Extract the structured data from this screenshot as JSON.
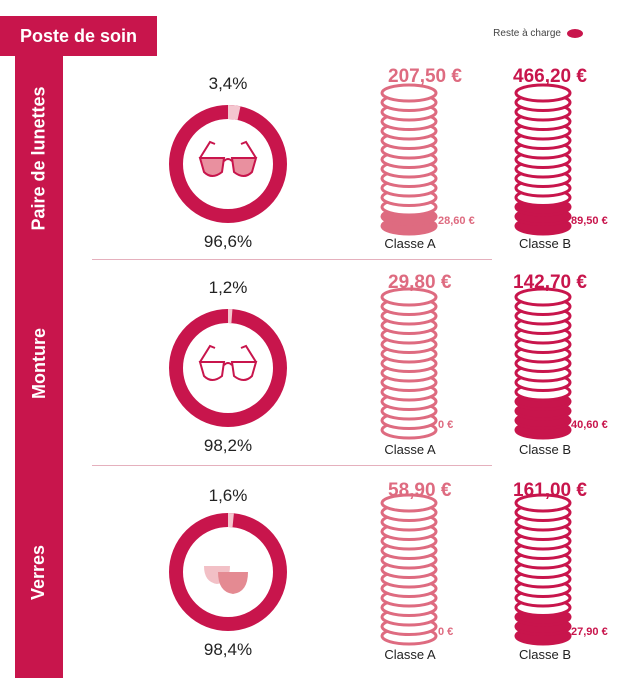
{
  "header": {
    "title": "Poste de soin"
  },
  "legend": {
    "label": "Reste à charge",
    "color": "#c8154c"
  },
  "colors": {
    "primary": "#c8154c",
    "light": "#de6b80",
    "ring_bg": "#f4c6cf"
  },
  "chart_data": {
    "type": "donut-and-coin-stacks",
    "rows": [
      {
        "name": "Paire de lunettes",
        "icon": "glasses-tinted-icon",
        "donut": {
          "small_pct_label": "3,4%",
          "big_pct_label": "96,6%",
          "small": 3.4,
          "big": 96.6
        },
        "classe_a": {
          "label": "Classe A",
          "total_label": "207,50 €",
          "total": 207.5,
          "reste_label": "28,60 €",
          "reste": 28.6
        },
        "classe_b": {
          "label": "Classe B",
          "total_label": "466,20 €",
          "total": 466.2,
          "reste_label": "89,50 €",
          "reste": 89.5
        }
      },
      {
        "name": "Monture",
        "icon": "glasses-frame-icon",
        "donut": {
          "small_pct_label": "1,2%",
          "big_pct_label": "98,2%",
          "small": 1.2,
          "big": 98.2
        },
        "classe_a": {
          "label": "Classe A",
          "total_label": "29,80 €",
          "total": 29.8,
          "reste_label": "0 €",
          "reste": 0
        },
        "classe_b": {
          "label": "Classe B",
          "total_label": "142,70 €",
          "total": 142.7,
          "reste_label": "40,60 €",
          "reste": 40.6
        }
      },
      {
        "name": "Verres",
        "icon": "lenses-icon",
        "donut": {
          "small_pct_label": "1,6%",
          "big_pct_label": "98,4%",
          "small": 1.6,
          "big": 98.4
        },
        "classe_a": {
          "label": "Classe A",
          "total_label": "58,90 €",
          "total": 58.9,
          "reste_label": "0 €",
          "reste": 0
        },
        "classe_b": {
          "label": "Classe B",
          "total_label": "161,00 €",
          "total": 161,
          "reste_label": "27,90 €",
          "reste": 27.9
        }
      }
    ]
  }
}
